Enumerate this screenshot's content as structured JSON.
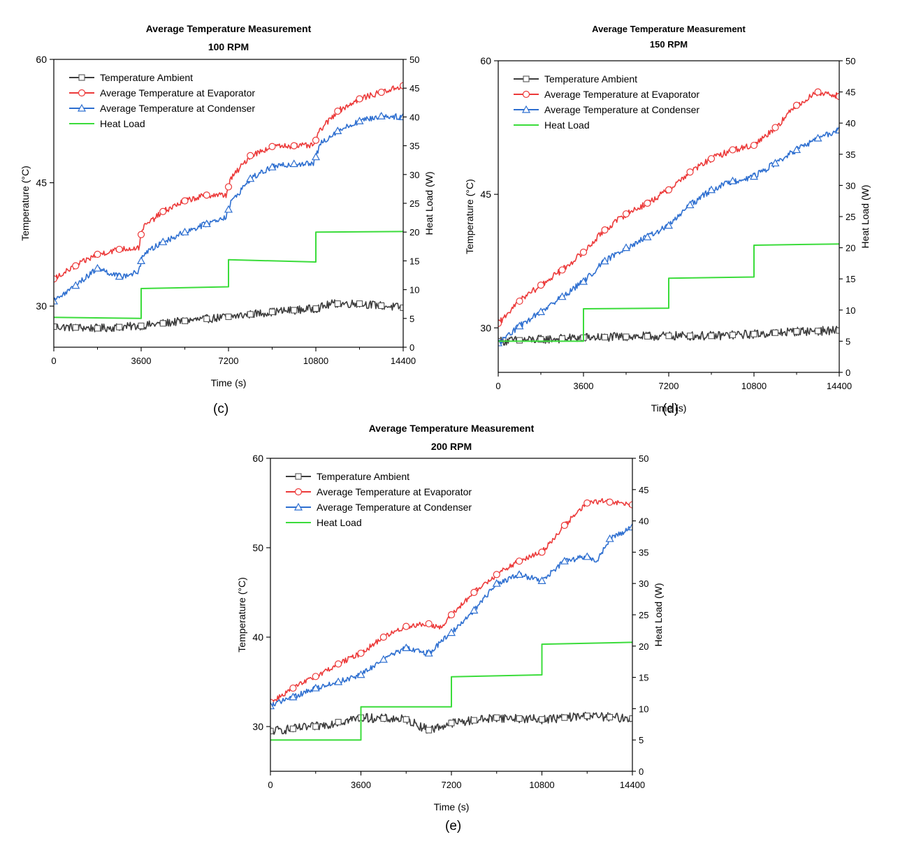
{
  "colors": {
    "ambient": "#3c3c3c",
    "evaporator": "#ec3a3a",
    "condenser": "#2e6fd0",
    "heat_load": "#3bdc3b"
  },
  "chart_data": [
    {
      "type": "line",
      "title": "Average Temperature Measurement",
      "subtitle": "100 RPM",
      "panel_label": "(c)",
      "xlabel": "Time (s)",
      "ylabel": "Temperature (°C)",
      "y2label": "Heat Load (W)",
      "xlim": [
        0,
        14400
      ],
      "ylim": [
        25,
        60
      ],
      "y2lim": [
        0,
        50
      ],
      "xticks": [
        0,
        3600,
        7200,
        10800,
        14400
      ],
      "yticks": [
        30,
        45,
        60
      ],
      "y2ticks": [
        0,
        5,
        10,
        15,
        20,
        25,
        30,
        35,
        40,
        45,
        50
      ],
      "legend_position": "top-left",
      "series": [
        {
          "name": "Temperature Ambient",
          "axis": "left",
          "marker": "square",
          "noise": 0.5,
          "x": [
            0,
            1800,
            3600,
            5400,
            7200,
            9000,
            10800,
            11500,
            12600,
            14400
          ],
          "y": [
            27.5,
            27.3,
            27.6,
            28.2,
            28.7,
            29.3,
            29.7,
            30.3,
            30.3,
            29.8
          ]
        },
        {
          "name": "Average Temperature at Evaporator",
          "axis": "left",
          "marker": "circle",
          "noise": 0.35,
          "x": [
            0,
            900,
            1800,
            2700,
            3500,
            3650,
            4500,
            5400,
            6300,
            7100,
            7300,
            8100,
            9000,
            9900,
            10700,
            11000,
            11700,
            12600,
            13500,
            14400
          ],
          "y": [
            33.3,
            34.9,
            36.3,
            36.9,
            37.1,
            39.5,
            41.5,
            42.8,
            43.5,
            43.5,
            45.5,
            48.3,
            49.4,
            49.5,
            49.5,
            51.5,
            53.7,
            55.2,
            56,
            56.8
          ]
        },
        {
          "name": "Average Temperature at Condenser",
          "axis": "left",
          "marker": "triangle",
          "noise": 0.35,
          "x": [
            0,
            900,
            1800,
            2700,
            3500,
            3650,
            4500,
            5400,
            6300,
            7100,
            7300,
            8100,
            9000,
            9900,
            10700,
            11000,
            11700,
            12600,
            13500,
            14400
          ],
          "y": [
            30.6,
            32.5,
            34.6,
            33.6,
            34.1,
            36.2,
            37.8,
            39.0,
            40.0,
            40.9,
            42.6,
            45.5,
            46.9,
            47.3,
            47.3,
            49.8,
            51.3,
            52.5,
            53.1,
            53.0
          ]
        },
        {
          "name": "Heat Load",
          "axis": "right",
          "marker": "none",
          "noise": 0,
          "x": [
            0,
            3600,
            3600,
            7200,
            7200,
            10800,
            10800,
            14400
          ],
          "y": [
            5.2,
            5.0,
            10.2,
            10.5,
            15.2,
            14.8,
            20.0,
            20.1
          ]
        }
      ]
    },
    {
      "type": "line",
      "title": "Average Temperature Measurement",
      "subtitle": "150 RPM",
      "panel_label": "(d)",
      "xlabel": "Time (s)",
      "ylabel": "Temperature (°C)",
      "y2label": "Heat Load (W)",
      "xlim": [
        0,
        14400
      ],
      "ylim": [
        25,
        60
      ],
      "y2lim": [
        0,
        50
      ],
      "xticks": [
        0,
        3600,
        7200,
        10800,
        14400
      ],
      "yticks": [
        30,
        45,
        60
      ],
      "y2ticks": [
        0,
        5,
        10,
        15,
        20,
        25,
        30,
        35,
        40,
        45,
        50
      ],
      "legend_position": "top-left",
      "series": [
        {
          "name": "Temperature Ambient",
          "axis": "left",
          "marker": "square",
          "noise": 0.5,
          "x": [
            0,
            1800,
            3600,
            5400,
            7200,
            9000,
            10800,
            12600,
            14400
          ],
          "y": [
            28.5,
            28.7,
            28.9,
            29.0,
            29.1,
            29.1,
            29.3,
            29.6,
            29.7
          ]
        },
        {
          "name": "Average Temperature at Evaporator",
          "axis": "left",
          "marker": "circle",
          "noise": 0.35,
          "x": [
            0,
            900,
            1800,
            2700,
            3600,
            4500,
            5400,
            6300,
            7200,
            8100,
            9000,
            9900,
            10800,
            11700,
            12600,
            13500,
            14400
          ],
          "y": [
            30.5,
            33.0,
            34.8,
            36.5,
            38.5,
            41.0,
            42.8,
            44.0,
            45.5,
            47.5,
            49.0,
            50.0,
            50.5,
            52.5,
            55.0,
            56.5,
            56.0
          ]
        },
        {
          "name": "Average Temperature at Condenser",
          "axis": "left",
          "marker": "triangle",
          "noise": 0.35,
          "x": [
            0,
            900,
            1800,
            2700,
            3600,
            4500,
            5400,
            6300,
            7200,
            8100,
            9000,
            9900,
            10800,
            11700,
            12600,
            13500,
            14400
          ],
          "y": [
            28.3,
            30.2,
            31.8,
            33.5,
            35.2,
            37.5,
            39.0,
            40.2,
            41.5,
            43.8,
            45.5,
            46.5,
            47.0,
            48.5,
            50.0,
            51.3,
            52.2
          ]
        },
        {
          "name": "Heat Load",
          "axis": "right",
          "marker": "none",
          "noise": 0,
          "x": [
            0,
            3600,
            3600,
            7200,
            7200,
            10800,
            10800,
            14400
          ],
          "y": [
            5.0,
            5.0,
            10.2,
            10.3,
            15.1,
            15.3,
            20.4,
            20.6
          ]
        }
      ]
    },
    {
      "type": "line",
      "title": "Average Temperature Measurement",
      "subtitle": "200 RPM",
      "panel_label": "(e)",
      "xlabel": "Time (s)",
      "ylabel": "Temperature (°C)",
      "y2label": "Heat Load (W)",
      "xlim": [
        0,
        14400
      ],
      "ylim": [
        25,
        60
      ],
      "y2lim": [
        0,
        50
      ],
      "xticks": [
        0,
        3600,
        7200,
        10800,
        14400
      ],
      "yticks": [
        30,
        40,
        50,
        60
      ],
      "y2ticks": [
        0,
        5,
        10,
        15,
        20,
        25,
        30,
        35,
        40,
        45,
        50
      ],
      "legend_position": "top-left",
      "series": [
        {
          "name": "Temperature Ambient",
          "axis": "left",
          "marker": "square",
          "noise": 0.5,
          "x": [
            0,
            1800,
            3600,
            5400,
            6300,
            7200,
            9000,
            10800,
            12600,
            14400
          ],
          "y": [
            29.5,
            30.0,
            31.0,
            30.8,
            29.6,
            30.4,
            31.0,
            30.8,
            31.2,
            30.9
          ]
        },
        {
          "name": "Average Temperature at Evaporator",
          "axis": "left",
          "marker": "circle",
          "noise": 0.3,
          "x": [
            0,
            900,
            1800,
            2700,
            3600,
            4500,
            5400,
            6300,
            6800,
            7200,
            8100,
            9000,
            9900,
            10800,
            11700,
            12600,
            13200,
            14400
          ],
          "y": [
            32.7,
            34.3,
            35.6,
            37.0,
            38.2,
            40.0,
            41.2,
            41.5,
            41.0,
            42.5,
            45.0,
            47.0,
            48.5,
            49.5,
            52.5,
            55.0,
            55.2,
            54.8
          ]
        },
        {
          "name": "Average Temperature at Condenser",
          "axis": "left",
          "marker": "triangle",
          "noise": 0.3,
          "x": [
            0,
            900,
            1800,
            2700,
            3600,
            4500,
            5400,
            6300,
            7200,
            8100,
            9000,
            9900,
            10800,
            11700,
            12600,
            13000,
            13500,
            14400
          ],
          "y": [
            32.3,
            33.3,
            34.3,
            35.0,
            35.8,
            37.5,
            38.8,
            38.2,
            40.5,
            43.0,
            46.0,
            47.0,
            46.3,
            48.5,
            49.0,
            48.5,
            51.0,
            52.3
          ]
        },
        {
          "name": "Heat Load",
          "axis": "right",
          "marker": "none",
          "noise": 0,
          "x": [
            0,
            3600,
            3600,
            7200,
            7200,
            10800,
            10800,
            14400
          ],
          "y": [
            5.0,
            5.0,
            10.3,
            10.3,
            15.1,
            15.4,
            20.3,
            20.6
          ]
        }
      ]
    }
  ]
}
